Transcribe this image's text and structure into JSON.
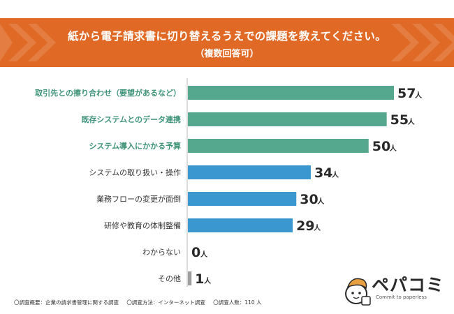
{
  "colors": {
    "banner": "#e06a25",
    "accent_green": "#55a88e",
    "accent_blue": "#3a97cf",
    "gray": "#9e9e9e"
  },
  "chart_data": {
    "type": "bar",
    "orientation": "horizontal",
    "title": "紙から電子請求書に切り替えるうえでの課題を教えてください。",
    "subtitle": "（複数回答可）",
    "unit": "人",
    "categories": [
      "取引先との擦り合わせ（要望があるなど）",
      "既存システムとのデータ連携",
      "システム導入にかかる予算",
      "システムの取り扱い・操作",
      "業務フローの変更が面倒",
      "研修や教育の体制整備",
      "わからない",
      "その他"
    ],
    "values": [
      57,
      55,
      50,
      34,
      30,
      29,
      0,
      1
    ],
    "bar_colors": [
      "#55a88e",
      "#55a88e",
      "#55a88e",
      "#3a97cf",
      "#3a97cf",
      "#3a97cf",
      "#9e9e9e",
      "#9e9e9e"
    ],
    "label_colors": [
      "#3f9378",
      "#3f9378",
      "#3f9378",
      "#333333",
      "#333333",
      "#333333",
      "#333333",
      "#333333"
    ],
    "xlim": [
      0,
      57
    ]
  },
  "footnote": {
    "overview": "〇調査概要：企業の請求書管理に関する調査",
    "method": "〇調査方法：インターネット調査",
    "count": "〇調査人数：110 人"
  },
  "logo": {
    "name": "ペパコミ",
    "tagline": "Commit to paperless"
  }
}
